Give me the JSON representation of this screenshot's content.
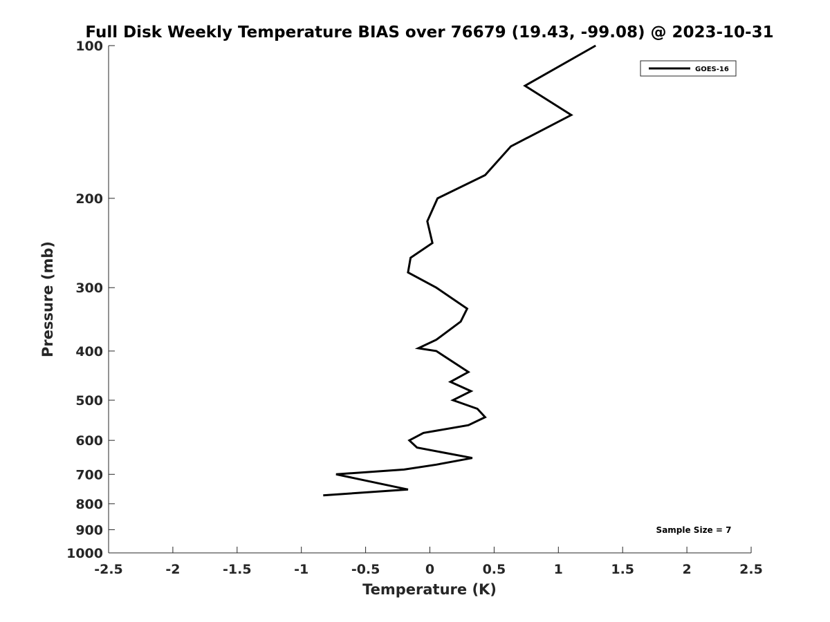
{
  "chart_data": {
    "type": "line",
    "title": "Full Disk Weekly Temperature BIAS over 76679 (19.43, -99.08) @ 2023-10-31",
    "xlabel": "Temperature (K)",
    "ylabel": "Pressure (mb)",
    "xlim": [
      -2.5,
      2.5
    ],
    "ylim": [
      100,
      1000
    ],
    "yscale": "log",
    "yreversed": true,
    "grid": false,
    "legend_position": "top-right",
    "x_ticks": [
      -2.5,
      -2,
      -1.5,
      -1,
      -0.5,
      0,
      0.5,
      1,
      1.5,
      2,
      2.5
    ],
    "x_tick_labels": [
      "-2.5",
      "-2",
      "-1.5",
      "-1",
      "-0.5",
      "0",
      "0.5",
      "1",
      "1.5",
      "2",
      "2.5"
    ],
    "y_ticks": [
      100,
      200,
      300,
      400,
      500,
      600,
      700,
      800,
      900,
      1000
    ],
    "y_tick_labels": [
      "100",
      "200",
      "300",
      "400",
      "500",
      "600",
      "700",
      "800",
      "900",
      "1000"
    ],
    "series": [
      {
        "name": "GOES-16",
        "color": "#000000",
        "x": [
          1.29,
          0.74,
          1.1,
          0.63,
          0.43,
          0.06,
          -0.02,
          0.02,
          -0.15,
          -0.17,
          0.05,
          0.29,
          0.24,
          0.05,
          -0.09,
          0.05,
          0.3,
          0.16,
          0.32,
          0.18,
          0.37,
          0.43,
          0.3,
          -0.05,
          -0.16,
          -0.1,
          0.33,
          0.05,
          -0.2,
          -0.73,
          -0.17,
          -0.83
        ],
        "y": [
          100,
          120,
          137,
          158,
          180,
          200,
          222,
          245,
          262,
          280,
          300,
          330,
          350,
          380,
          395,
          400,
          440,
          460,
          480,
          500,
          520,
          540,
          560,
          580,
          600,
          620,
          650,
          670,
          685,
          700,
          750,
          770
        ]
      }
    ],
    "annotations": [
      "Sample Size = 7"
    ]
  }
}
